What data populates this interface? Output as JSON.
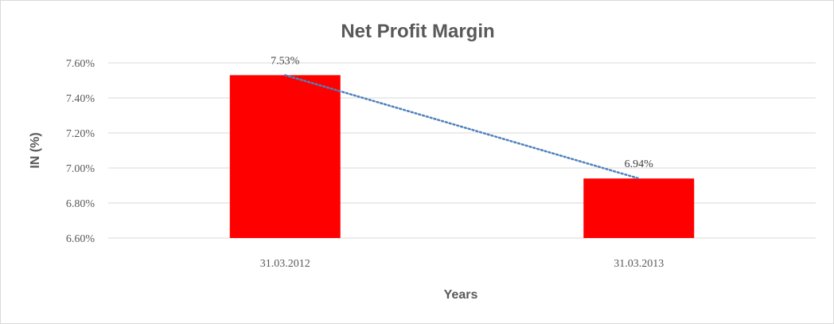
{
  "chart_data": {
    "type": "bar",
    "title": "Net Profit Margin",
    "xlabel": "Years",
    "ylabel": "IN (%)",
    "categories": [
      "31.03.2012",
      "31.03.2013"
    ],
    "values": [
      7.53,
      6.94
    ],
    "data_labels": [
      "7.53%",
      "6.94%"
    ],
    "ylim": [
      6.6,
      7.6
    ],
    "y_ticks": [
      6.6,
      6.8,
      7.0,
      7.2,
      7.4,
      7.6
    ],
    "y_tick_labels": [
      "6.60%",
      "6.80%",
      "7.00%",
      "7.20%",
      "7.40%",
      "7.60%"
    ],
    "grid": true,
    "legend": "none",
    "trendline": "linear, dotted",
    "colors": {
      "bar": "#ff0000",
      "trendline": "#4f81bd",
      "grid": "#d9d9d9",
      "text": "#595959"
    }
  }
}
